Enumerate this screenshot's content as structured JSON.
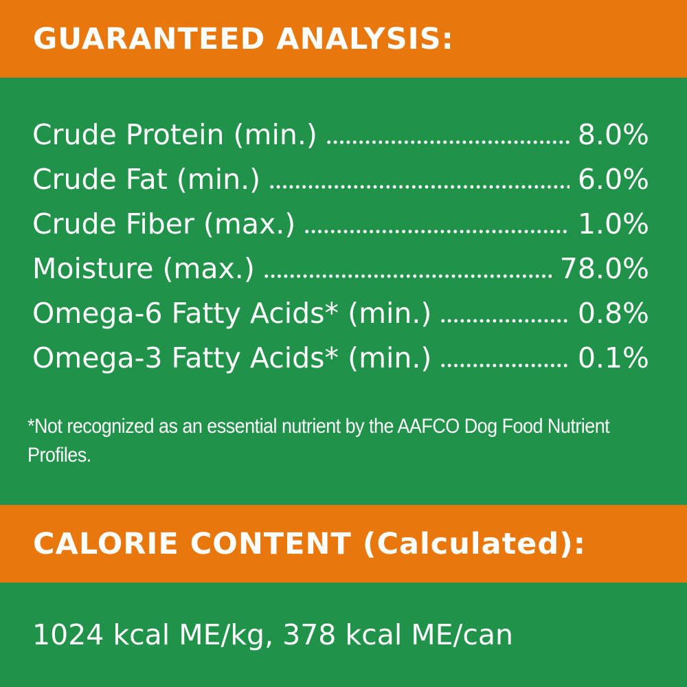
{
  "header": {
    "title": "GUARANTEED ANALYSIS:"
  },
  "analysis": {
    "rows": [
      {
        "label": "Crude Protein (min.)",
        "value": "8.0%"
      },
      {
        "label": "Crude Fat (min.)",
        "value": "6.0%"
      },
      {
        "label": "Crude Fiber (max.)",
        "value": "1.0%"
      },
      {
        "label": "Moisture (max.)",
        "value": "78.0%"
      },
      {
        "label": "Omega-6 Fatty Acids* (min.)",
        "value": "0.8%"
      },
      {
        "label": "Omega-3 Fatty Acids* (min.)",
        "value": "0.1%"
      }
    ],
    "footnote": "*Not recognized as an essential nutrient by the AAFCO Dog Food Nutrient Profiles."
  },
  "calorie": {
    "title": "CALORIE CONTENT (Calculated):",
    "text": "1024 kcal ME/kg, 378 kcal ME/can"
  }
}
